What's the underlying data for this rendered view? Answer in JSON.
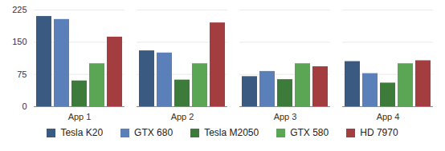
{
  "chart_data": {
    "type": "bar",
    "categories": [
      "App 1",
      "App 2",
      "App 3",
      "App 4"
    ],
    "series": [
      {
        "name": "Tesla K20",
        "color": "#3b5a82",
        "values": [
          210,
          130,
          70,
          105
        ]
      },
      {
        "name": "GTX 680",
        "color": "#5b7fb9",
        "values": [
          203,
          125,
          82,
          77
        ]
      },
      {
        "name": "Tesla M2050",
        "color": "#3d7b3a",
        "values": [
          60,
          62,
          63,
          55
        ]
      },
      {
        "name": "GTX 580",
        "color": "#5aa655",
        "values": [
          100,
          100,
          100,
          100
        ]
      },
      {
        "name": "HD 7970",
        "color": "#a33d3f",
        "values": [
          162,
          195,
          93,
          107
        ]
      }
    ],
    "ylim": [
      0,
      225
    ],
    "yticks": [
      0,
      75,
      150,
      225
    ],
    "grid": true,
    "legend": "bottom"
  }
}
